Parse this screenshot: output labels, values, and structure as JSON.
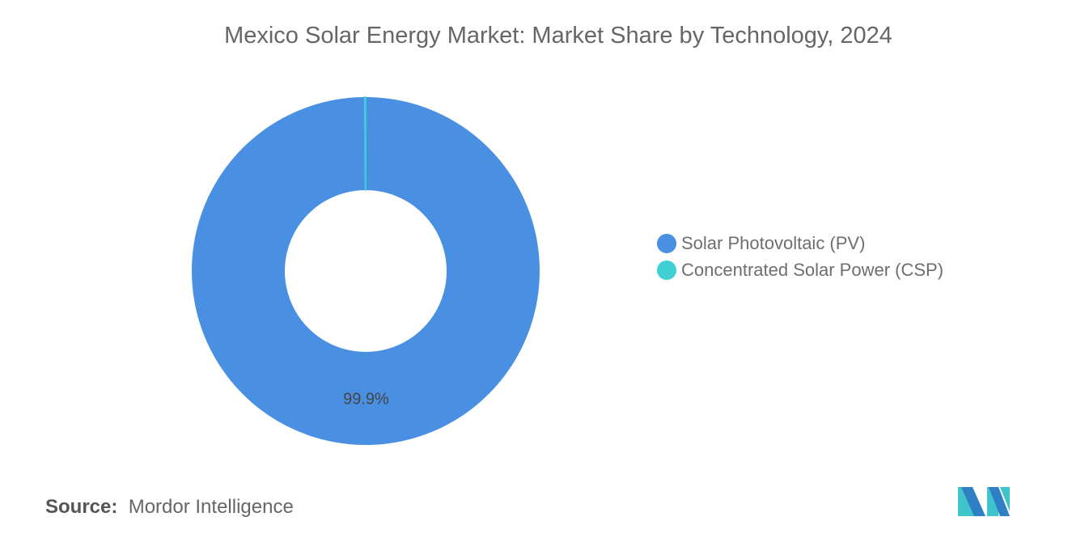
{
  "chart_data": {
    "type": "pie",
    "donut": true,
    "title": "Mexico Solar Energy Market: Market Share by Technology, 2024",
    "categories": [
      "Solar Photovoltaic (PV)",
      "Concentrated Solar Power (CSP)"
    ],
    "values": [
      99.9,
      0.1
    ],
    "unit": "%",
    "data_labels": [
      "99.9%",
      ""
    ],
    "colors": [
      "#4a90e2",
      "#3fd0d6"
    ],
    "legend_placement": "right"
  },
  "source": {
    "label": "Source:",
    "value": "Mordor Intelligence"
  },
  "logo": {
    "colors": [
      "#2f7fc4",
      "#3fc4cc"
    ]
  }
}
